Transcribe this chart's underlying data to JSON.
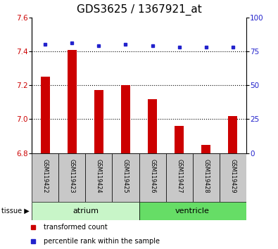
{
  "title": "GDS3625 / 1367921_at",
  "samples": [
    "GSM119422",
    "GSM119423",
    "GSM119424",
    "GSM119425",
    "GSM119426",
    "GSM119427",
    "GSM119428",
    "GSM119429"
  ],
  "transformed_count": [
    7.25,
    7.41,
    7.17,
    7.2,
    7.12,
    6.96,
    6.85,
    7.02
  ],
  "percentile_rank": [
    80,
    81,
    79,
    80,
    79,
    78,
    78,
    78
  ],
  "ylim_left": [
    6.8,
    7.6
  ],
  "ylim_right": [
    0,
    100
  ],
  "yticks_left": [
    6.8,
    7.0,
    7.2,
    7.4,
    7.6
  ],
  "yticks_right": [
    0,
    25,
    50,
    75,
    100
  ],
  "groups": [
    {
      "name": "atrium",
      "start": 0,
      "end": 4,
      "color": "#c8f5c8"
    },
    {
      "name": "ventricle",
      "start": 4,
      "end": 8,
      "color": "#66dd66"
    }
  ],
  "bar_color": "#cc0000",
  "dot_color": "#2222cc",
  "title_fontsize": 11,
  "tick_fontsize": 7.5,
  "label_color_left": "#cc0000",
  "label_color_right": "#2222cc",
  "background_sample": "#c8c8c8",
  "bar_width": 0.35
}
